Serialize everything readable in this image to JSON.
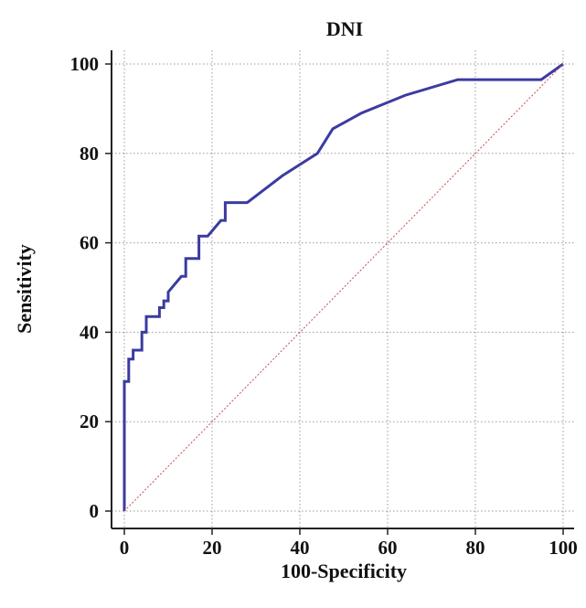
{
  "chart_data": {
    "type": "line",
    "title": "DNI",
    "xlabel": "100-Specificity",
    "ylabel": "Sensitivity",
    "xlim": [
      0,
      100
    ],
    "ylim": [
      0,
      100
    ],
    "xticks": [
      0,
      20,
      40,
      60,
      80,
      100
    ],
    "yticks": [
      0,
      20,
      40,
      60,
      80,
      100
    ],
    "grid": true,
    "legend": "none",
    "series": [
      {
        "color": "#3b3ba0",
        "step": true,
        "points": [
          [
            0,
            0
          ],
          [
            0,
            29
          ],
          [
            1,
            29
          ],
          [
            1,
            34
          ],
          [
            2,
            34
          ],
          [
            2,
            36
          ],
          [
            4,
            36
          ],
          [
            4,
            40
          ],
          [
            5,
            40
          ],
          [
            5,
            43.5
          ],
          [
            8,
            43.5
          ],
          [
            8,
            45.5
          ],
          [
            9,
            45.5
          ],
          [
            9,
            47
          ],
          [
            10,
            47
          ],
          [
            10,
            49
          ],
          [
            13,
            52.5
          ],
          [
            14,
            52.5
          ],
          [
            14,
            56.5
          ],
          [
            17,
            56.5
          ],
          [
            17,
            61.5
          ],
          [
            19,
            61.5
          ],
          [
            22,
            65
          ],
          [
            23,
            65
          ],
          [
            23,
            69
          ],
          [
            28,
            69
          ],
          [
            32,
            72
          ],
          [
            36,
            75
          ],
          [
            40,
            77.5
          ],
          [
            44,
            80
          ],
          [
            47.5,
            85.5
          ],
          [
            54,
            89
          ],
          [
            64,
            93
          ],
          [
            76,
            96.5
          ],
          [
            95,
            96.5
          ],
          [
            100,
            100
          ]
        ]
      },
      {
        "color": "#c0504d",
        "dashed": true,
        "points": [
          [
            0,
            0
          ],
          [
            100,
            100
          ]
        ]
      }
    ]
  }
}
